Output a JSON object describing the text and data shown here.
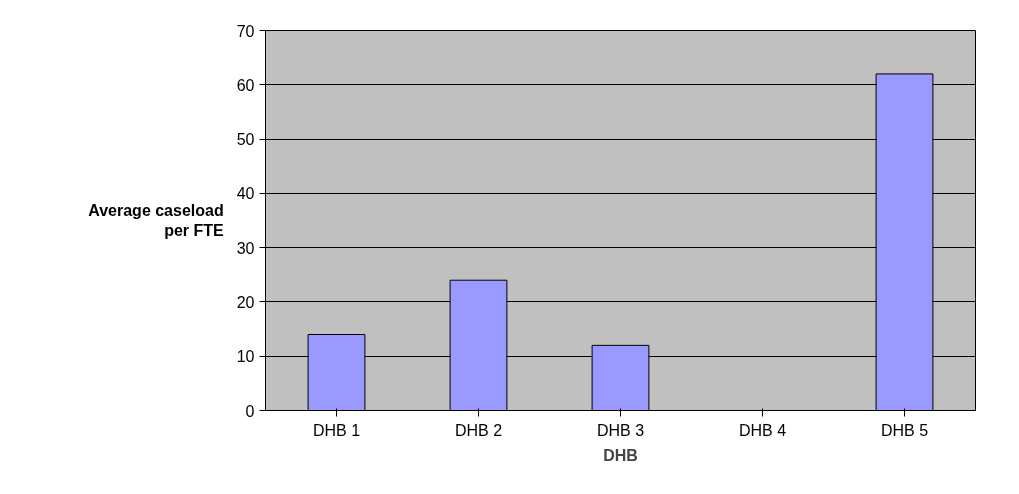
{
  "chart_data": {
    "type": "bar",
    "xlabel": "DHB",
    "ylabel": "Average caseload per FTE",
    "categories": [
      "DHB 1",
      "DHB 2",
      "DHB 3",
      "DHB 4",
      "DHB 5"
    ],
    "values": [
      14,
      24,
      12,
      null,
      62
    ],
    "color": "#9999ff",
    "ylim": [
      0,
      70
    ],
    "yticks": [
      0,
      10,
      20,
      30,
      40,
      50,
      60,
      70
    ],
    "grid": "y"
  }
}
